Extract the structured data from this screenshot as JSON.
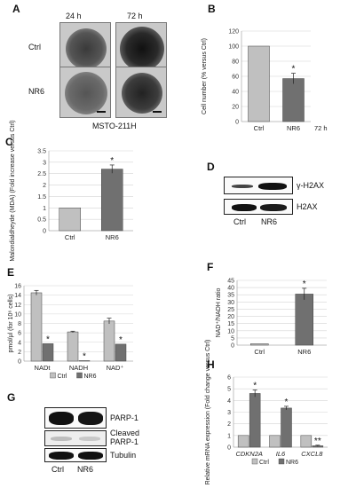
{
  "panels": {
    "A": "A",
    "B": "B",
    "C": "C",
    "D": "D",
    "E": "E",
    "F": "F",
    "G": "G",
    "H": "H"
  },
  "panel_a": {
    "col_24h": "24 h",
    "col_72h": "72 h",
    "row_ctrl": "Ctrl",
    "row_nr6": "NR6",
    "cell_line": "MSTO-211H"
  },
  "panel_d": {
    "bands": [
      "γ-H2AX",
      "H2AX"
    ],
    "lanes": [
      "Ctrl",
      "NR6"
    ]
  },
  "panel_g": {
    "bands": [
      "PARP-1",
      "Cleaved PARP-1",
      "Tubulin"
    ],
    "lanes": [
      "Ctrl",
      "NR6"
    ]
  },
  "chart_data": [
    {
      "id": "B",
      "type": "bar",
      "categories": [
        "Ctrl",
        "NR6"
      ],
      "values": [
        100,
        57
      ],
      "errors": [
        0,
        7
      ],
      "significance": [
        "",
        "*"
      ],
      "colors": [
        "#c0c0c0",
        "#707070"
      ],
      "ylabel": "Cell number (% versus Ctrl)",
      "ylim": [
        0,
        120
      ],
      "yticks": [
        0,
        20,
        40,
        60,
        80,
        100,
        120
      ],
      "extra_label": "72 h"
    },
    {
      "id": "C",
      "type": "bar",
      "categories": [
        "Ctrl",
        "NR6"
      ],
      "values": [
        1,
        2.7
      ],
      "errors": [
        0,
        0.18
      ],
      "significance": [
        "",
        "*"
      ],
      "colors": [
        "#c0c0c0",
        "#707070"
      ],
      "ylabel": "Malondialdheyde (MDA) (Fold increase versus Ctrl)",
      "ylim": [
        0,
        3.5
      ],
      "yticks": [
        0,
        0.5,
        1,
        1.5,
        2,
        2.5,
        3,
        3.5
      ]
    },
    {
      "id": "E",
      "type": "bar",
      "categories": [
        "NADt",
        "NADH",
        "NAD⁺"
      ],
      "series": [
        {
          "name": "Ctrl",
          "values": [
            14.5,
            6.2,
            8.5
          ],
          "errors": [
            0.5,
            0.15,
            0.6
          ],
          "color": "#c0c0c0",
          "significance": [
            "",
            "",
            ""
          ]
        },
        {
          "name": "NR6",
          "values": [
            3.7,
            0.1,
            3.6
          ],
          "errors": [
            0,
            0,
            0
          ],
          "color": "#707070",
          "significance": [
            "*",
            "*",
            "*"
          ]
        }
      ],
      "ylabel": "pmol/μl (for 10⁶ cells)",
      "ylim": [
        0,
        16
      ],
      "yticks": [
        0,
        2,
        4,
        6,
        8,
        10,
        12,
        14,
        16
      ],
      "legend_position": "bottom"
    },
    {
      "id": "F",
      "type": "bar",
      "categories": [
        "Ctrl",
        "NR6"
      ],
      "values": [
        1,
        35.5
      ],
      "errors": [
        0,
        4
      ],
      "significance": [
        "",
        "*"
      ],
      "colors": [
        "#c0c0c0",
        "#707070"
      ],
      "ylabel": "NAD⁺/NADH ratio",
      "ylim": [
        0,
        45
      ],
      "yticks": [
        0,
        5,
        10,
        15,
        20,
        25,
        30,
        35,
        40,
        45
      ]
    },
    {
      "id": "H",
      "type": "bar",
      "categories": [
        "CDKN2A",
        "IL6",
        "CXCL8"
      ],
      "series": [
        {
          "name": "Ctrl",
          "values": [
            1,
            1,
            1
          ],
          "errors": [
            0,
            0,
            0
          ],
          "color": "#c0c0c0",
          "significance": [
            "",
            "",
            ""
          ]
        },
        {
          "name": "NR6",
          "values": [
            4.6,
            3.35,
            0.12
          ],
          "errors": [
            0.3,
            0.15,
            0.05
          ],
          "color": "#707070",
          "significance": [
            "*",
            "*",
            "**"
          ]
        }
      ],
      "ylabel": "Relative mRNA expression (Fold change versus Ctrl)",
      "ylim": [
        0,
        6
      ],
      "yticks": [
        0,
        1,
        2,
        3,
        4,
        5,
        6
      ],
      "legend_position": "bottom"
    }
  ]
}
